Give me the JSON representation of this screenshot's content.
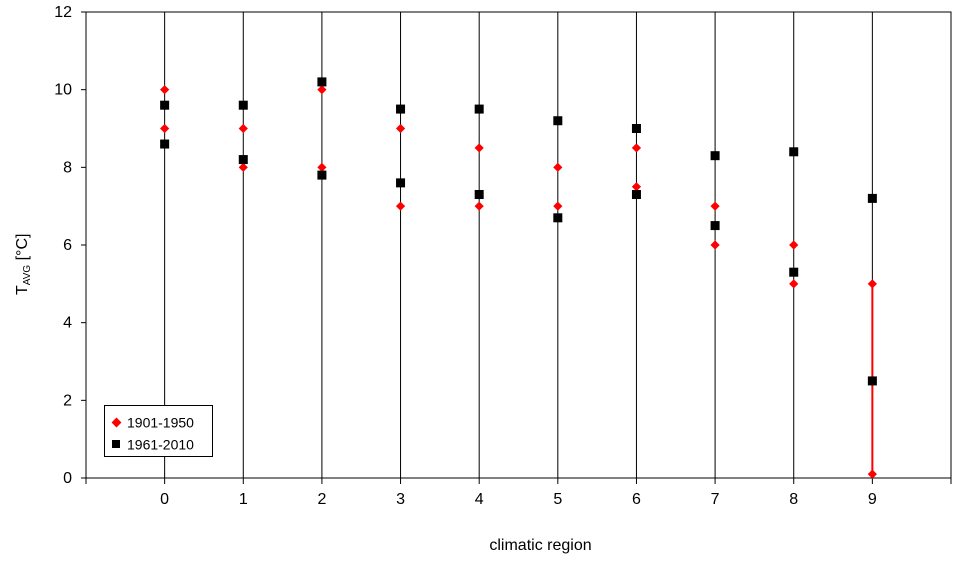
{
  "chart_data": {
    "type": "scatter",
    "xlabel": "climatic region",
    "ylabel": {
      "main": "T",
      "subscript": "AVG",
      "suffix": " [°C]"
    },
    "xlim": [
      -1,
      10
    ],
    "ylim": [
      0,
      12
    ],
    "x_ticks": [
      0,
      1,
      2,
      3,
      4,
      5,
      6,
      7,
      8,
      9
    ],
    "y_ticks": [
      0,
      2,
      4,
      6,
      8,
      10,
      12
    ],
    "vertical_grid_lines_at": [
      0,
      1,
      2,
      3,
      4,
      5,
      6,
      7,
      8,
      9
    ],
    "horizontal_grid": false,
    "legend_position": "bottom-left",
    "series": [
      {
        "name": "1901-1950",
        "marker": "diamond",
        "color": "#ff0000",
        "points": [
          [
            0,
            10
          ],
          [
            0,
            9
          ],
          [
            1,
            9
          ],
          [
            1,
            8
          ],
          [
            2,
            10
          ],
          [
            2,
            8
          ],
          [
            3,
            9
          ],
          [
            3,
            7
          ],
          [
            4,
            8.5
          ],
          [
            4,
            7
          ],
          [
            5,
            8
          ],
          [
            5,
            7
          ],
          [
            6,
            8.5
          ],
          [
            6,
            7.5
          ],
          [
            7,
            7
          ],
          [
            7,
            6
          ],
          [
            8,
            6
          ],
          [
            8,
            5
          ],
          [
            9,
            5
          ],
          [
            9,
            0.1
          ]
        ]
      },
      {
        "name": "1961-2010",
        "marker": "square",
        "color": "#000000",
        "points": [
          [
            0,
            9.6
          ],
          [
            0,
            8.6
          ],
          [
            1,
            9.6
          ],
          [
            1,
            8.2
          ],
          [
            2,
            10.2
          ],
          [
            2,
            7.8
          ],
          [
            3,
            9.5
          ],
          [
            3,
            7.6
          ],
          [
            4,
            9.5
          ],
          [
            4,
            7.3
          ],
          [
            5,
            9.2
          ],
          [
            5,
            6.7
          ],
          [
            6,
            9
          ],
          [
            6,
            7.3
          ],
          [
            7,
            8.3
          ],
          [
            7,
            6.5
          ],
          [
            8,
            8.4
          ],
          [
            8,
            5.3
          ],
          [
            9,
            7.2
          ],
          [
            9,
            2.5
          ]
        ]
      }
    ],
    "highlight_segment": {
      "x": 9,
      "y_from": 5,
      "y_to": 0.1,
      "color": "#ff0000"
    }
  }
}
